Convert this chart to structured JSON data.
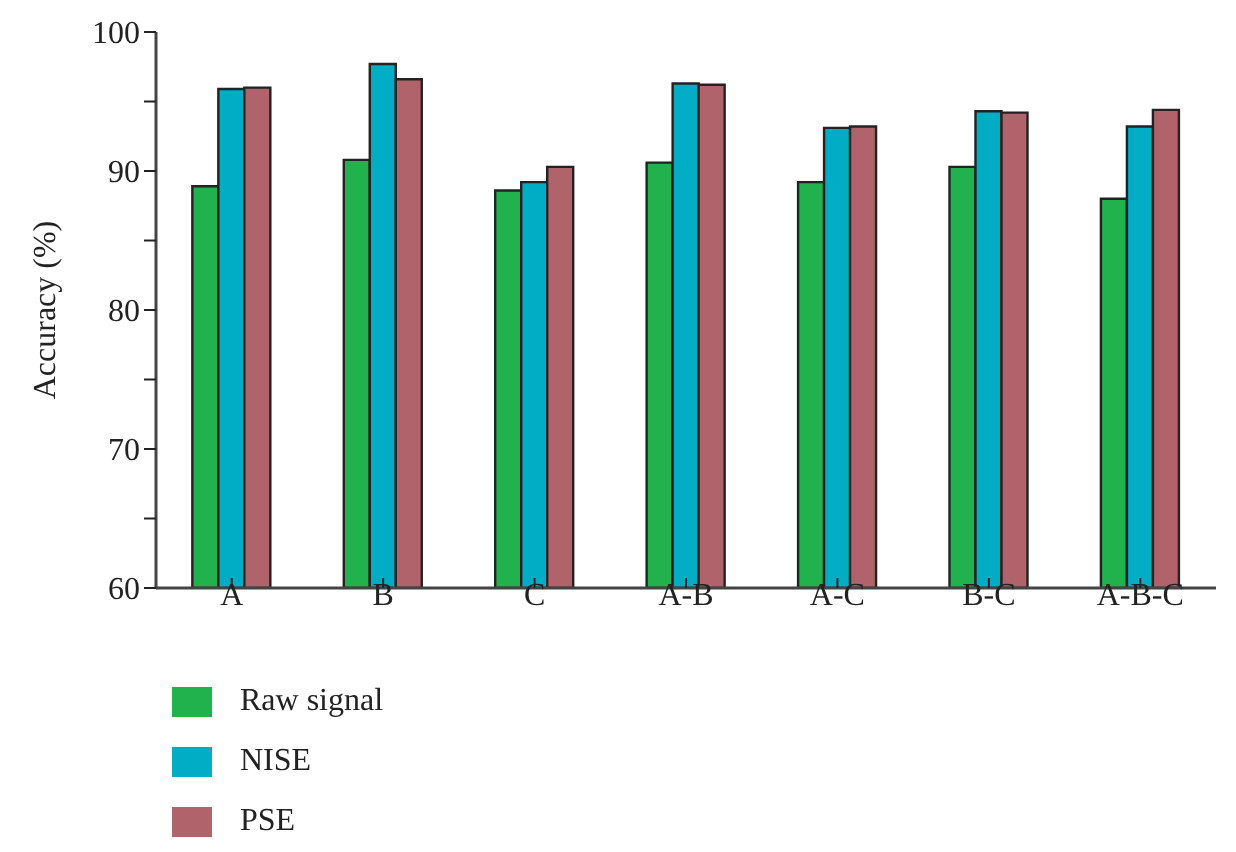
{
  "chart_data": {
    "type": "bar",
    "ylabel": "Accuracy (%)",
    "categories": [
      "A",
      "B",
      "C",
      "A-B",
      "A-C",
      "B-C",
      "A-B-C"
    ],
    "series": [
      {
        "name": "Raw signal",
        "color": "#21b14d",
        "values": [
          88.9,
          90.8,
          88.6,
          90.6,
          89.2,
          90.3,
          88.0
        ]
      },
      {
        "name": "NISE",
        "color": "#00adc5",
        "values": [
          95.9,
          97.7,
          89.2,
          96.3,
          93.1,
          94.3,
          93.2
        ]
      },
      {
        "name": "PSE",
        "color": "#b0636b",
        "values": [
          96.0,
          96.6,
          90.3,
          96.2,
          93.2,
          94.2,
          94.4
        ]
      }
    ],
    "ylim": [
      60,
      100
    ],
    "yticks": [
      60,
      {
        "value": 65,
        "label": null
      },
      70,
      {
        "value": 75,
        "label": null
      },
      80,
      {
        "value": 85,
        "label": null
      },
      90,
      {
        "value": 95,
        "label": null
      },
      100
    ],
    "grid": false,
    "legend": "bottom left"
  }
}
